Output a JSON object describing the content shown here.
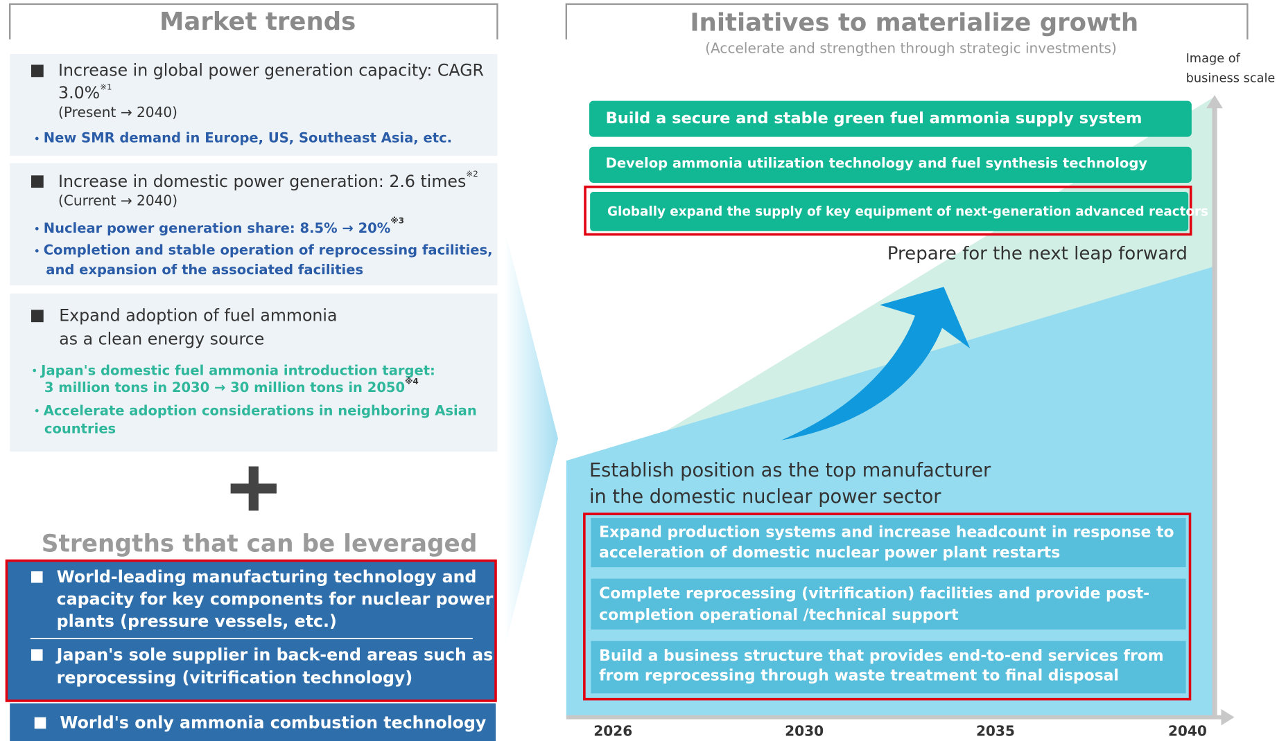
{
  "left": {
    "title": "Market trends",
    "trends": [
      {
        "heading": [
          "Increase in global power generation capacity: CAGR",
          "3.0%"
        ],
        "heading_note": "※1",
        "period": "(Present → 2040)",
        "bullets": [
          {
            "lines": [
              "New SMR demand in Europe, US, Southeast Asia, etc."
            ]
          }
        ]
      },
      {
        "heading": [
          "Increase in domestic power generation: 2.6 times"
        ],
        "heading_note": "※2",
        "period": "(Current → 2040)",
        "bullets": [
          {
            "lines": [
              "Nuclear power generation share: 8.5% → 20%"
            ],
            "note": "※3"
          },
          {
            "lines": [
              "Completion and stable operation of reprocessing facilities,",
              "and expansion of the associated facilities"
            ]
          }
        ]
      },
      {
        "heading": [
          "Expand adoption of fuel ammonia",
          "as a clean energy source"
        ],
        "bullets": [
          {
            "lines": [
              "Japan's domestic fuel ammonia introduction target:",
              "3 million tons in 2030 → 30 million tons in 2050"
            ],
            "note": "※4"
          },
          {
            "lines": [
              "Accelerate adoption considerations in neighboring Asian",
              "countries"
            ]
          }
        ]
      }
    ],
    "strengths_title": "Strengths that can be leveraged",
    "strengths": [
      [
        "World-leading manufacturing technology and",
        "capacity for key components for nuclear power",
        "plants (pressure vessels, etc.)"
      ],
      [
        "Japan's sole supplier in back-end areas such as",
        "reprocessing (vitrification technology)"
      ],
      [
        "World's only ammonia combustion technology"
      ]
    ]
  },
  "right": {
    "title": "Initiatives to materialize growth",
    "subtitle": "(Accelerate and strengthen through strategic investments)",
    "axis_label": [
      "Image of",
      "business scale"
    ],
    "growth_items": [
      "Build a secure and stable green fuel ammonia supply system",
      "Develop ammonia utilization technology and fuel synthesis technology",
      "Globally expand the supply of key equipment of next-generation advanced reactors"
    ],
    "leap_label": "Prepare for the next leap forward",
    "base_label": [
      "Establish position as the top manufacturer",
      "in the domestic nuclear power sector"
    ],
    "base_items": [
      [
        "Expand production systems and increase headcount in response to",
        "acceleration of domestic nuclear power plant restarts"
      ],
      [
        "Complete reprocessing (vitrification) facilities and provide post-",
        "completion operational /technical support"
      ],
      [
        "Build a business structure that provides end-to-end services from",
        "from reprocessing through waste treatment to final disposal"
      ]
    ],
    "years": [
      "2026",
      "2030",
      "2035",
      "2040"
    ]
  }
}
